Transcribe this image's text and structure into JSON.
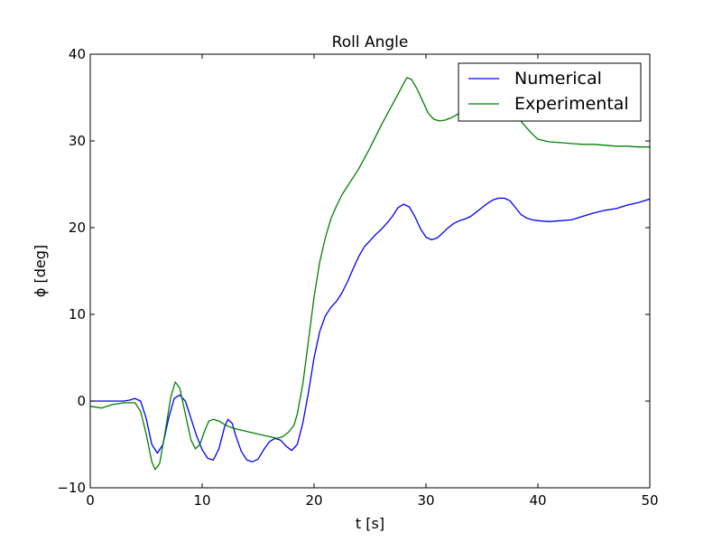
{
  "chart_data": {
    "type": "line",
    "title": "Roll Angle",
    "xlabel": "t [s]",
    "ylabel": "ϕ [deg]",
    "xlim": [
      0,
      50
    ],
    "ylim": [
      -10,
      40
    ],
    "xticks": [
      0,
      10,
      20,
      30,
      40,
      50
    ],
    "yticks": [
      -10,
      0,
      10,
      20,
      30,
      40
    ],
    "grid": false,
    "legend_position": "top-right",
    "series": [
      {
        "name": "Numerical",
        "color": "#0000ff",
        "points": [
          [
            0,
            0.0
          ],
          [
            1,
            0.0
          ],
          [
            2,
            0.0
          ],
          [
            3,
            0.0
          ],
          [
            3.5,
            0.1
          ],
          [
            4,
            0.3
          ],
          [
            4.5,
            0.0
          ],
          [
            5,
            -2.0
          ],
          [
            5.5,
            -5.0
          ],
          [
            6,
            -6.0
          ],
          [
            6.5,
            -5.0
          ],
          [
            7,
            -2.0
          ],
          [
            7.5,
            0.3
          ],
          [
            8,
            0.7
          ],
          [
            8.5,
            0.0
          ],
          [
            9,
            -2.0
          ],
          [
            9.5,
            -4.0
          ],
          [
            10,
            -5.6
          ],
          [
            10.5,
            -6.6
          ],
          [
            11,
            -6.8
          ],
          [
            11.5,
            -5.5
          ],
          [
            12,
            -3.0
          ],
          [
            12.3,
            -2.1
          ],
          [
            12.7,
            -2.6
          ],
          [
            13,
            -4.0
          ],
          [
            13.5,
            -5.8
          ],
          [
            14,
            -6.8
          ],
          [
            14.5,
            -7.0
          ],
          [
            15,
            -6.7
          ],
          [
            15.5,
            -5.6
          ],
          [
            16,
            -4.7
          ],
          [
            16.5,
            -4.3
          ],
          [
            17,
            -4.5
          ],
          [
            17.5,
            -5.2
          ],
          [
            18,
            -5.7
          ],
          [
            18.5,
            -5.0
          ],
          [
            19,
            -2.5
          ],
          [
            19.5,
            1.0
          ],
          [
            20,
            5.0
          ],
          [
            20.5,
            8.0
          ],
          [
            21,
            9.8
          ],
          [
            21.5,
            10.8
          ],
          [
            22,
            11.5
          ],
          [
            22.5,
            12.5
          ],
          [
            23,
            13.8
          ],
          [
            23.5,
            15.3
          ],
          [
            24,
            16.7
          ],
          [
            24.5,
            17.8
          ],
          [
            25,
            18.5
          ],
          [
            25.5,
            19.2
          ],
          [
            26,
            19.8
          ],
          [
            26.5,
            20.5
          ],
          [
            27,
            21.3
          ],
          [
            27.5,
            22.3
          ],
          [
            28,
            22.7
          ],
          [
            28.5,
            22.4
          ],
          [
            29,
            21.3
          ],
          [
            29.5,
            19.9
          ],
          [
            30,
            18.9
          ],
          [
            30.5,
            18.6
          ],
          [
            31,
            18.8
          ],
          [
            31.5,
            19.4
          ],
          [
            32,
            20.0
          ],
          [
            32.5,
            20.5
          ],
          [
            33,
            20.8
          ],
          [
            33.5,
            21.0
          ],
          [
            34,
            21.3
          ],
          [
            34.5,
            21.8
          ],
          [
            35,
            22.3
          ],
          [
            35.5,
            22.8
          ],
          [
            36,
            23.2
          ],
          [
            36.5,
            23.4
          ],
          [
            37,
            23.4
          ],
          [
            37.5,
            23.1
          ],
          [
            38,
            22.3
          ],
          [
            38.5,
            21.5
          ],
          [
            39,
            21.1
          ],
          [
            39.5,
            20.9
          ],
          [
            40,
            20.8
          ],
          [
            41,
            20.7
          ],
          [
            42,
            20.8
          ],
          [
            43,
            20.9
          ],
          [
            44,
            21.3
          ],
          [
            45,
            21.7
          ],
          [
            46,
            22.0
          ],
          [
            47,
            22.2
          ],
          [
            48,
            22.6
          ],
          [
            49,
            22.9
          ],
          [
            50,
            23.3
          ]
        ]
      },
      {
        "name": "Experimental",
        "color": "#008000",
        "points": [
          [
            0,
            -0.6
          ],
          [
            0.5,
            -0.7
          ],
          [
            1,
            -0.8
          ],
          [
            1.5,
            -0.6
          ],
          [
            2,
            -0.4
          ],
          [
            2.5,
            -0.3
          ],
          [
            3,
            -0.2
          ],
          [
            3.5,
            -0.2
          ],
          [
            4,
            -0.2
          ],
          [
            4.5,
            -1.2
          ],
          [
            5,
            -3.8
          ],
          [
            5.5,
            -7.0
          ],
          [
            5.8,
            -7.9
          ],
          [
            6.2,
            -7.2
          ],
          [
            6.7,
            -3.5
          ],
          [
            7.2,
            0.5
          ],
          [
            7.6,
            2.2
          ],
          [
            8,
            1.5
          ],
          [
            8.5,
            -1.5
          ],
          [
            9,
            -4.5
          ],
          [
            9.4,
            -5.5
          ],
          [
            9.8,
            -5.0
          ],
          [
            10.2,
            -3.5
          ],
          [
            10.6,
            -2.3
          ],
          [
            11,
            -2.1
          ],
          [
            11.5,
            -2.3
          ],
          [
            12,
            -2.7
          ],
          [
            12.5,
            -3.0
          ],
          [
            13,
            -3.2
          ],
          [
            14,
            -3.5
          ],
          [
            15,
            -3.8
          ],
          [
            16,
            -4.1
          ],
          [
            16.7,
            -4.3
          ],
          [
            17.2,
            -4.1
          ],
          [
            17.7,
            -3.6
          ],
          [
            18.2,
            -2.8
          ],
          [
            18.5,
            -1.5
          ],
          [
            19,
            2.0
          ],
          [
            19.5,
            7.0
          ],
          [
            20,
            12.0
          ],
          [
            20.5,
            16.0
          ],
          [
            21,
            18.8
          ],
          [
            21.5,
            21.0
          ],
          [
            22,
            22.5
          ],
          [
            22.5,
            23.8
          ],
          [
            23,
            24.8
          ],
          [
            23.5,
            25.8
          ],
          [
            24,
            26.8
          ],
          [
            24.5,
            28.0
          ],
          [
            25,
            29.2
          ],
          [
            25.5,
            30.5
          ],
          [
            26,
            31.8
          ],
          [
            26.5,
            33.0
          ],
          [
            27,
            34.2
          ],
          [
            27.5,
            35.4
          ],
          [
            28,
            36.6
          ],
          [
            28.3,
            37.3
          ],
          [
            28.7,
            37.1
          ],
          [
            29.2,
            36.0
          ],
          [
            29.7,
            34.6
          ],
          [
            30.2,
            33.2
          ],
          [
            30.7,
            32.5
          ],
          [
            31.2,
            32.3
          ],
          [
            31.7,
            32.4
          ],
          [
            32.3,
            32.7
          ],
          [
            33,
            33.2
          ],
          [
            34,
            34.0
          ],
          [
            35,
            34.5
          ],
          [
            36,
            34.3
          ],
          [
            37,
            33.8
          ],
          [
            38,
            33.0
          ],
          [
            39,
            31.5
          ],
          [
            39.5,
            30.8
          ],
          [
            40,
            30.2
          ],
          [
            41,
            29.9
          ],
          [
            42,
            29.8
          ],
          [
            43,
            29.7
          ],
          [
            44,
            29.6
          ],
          [
            45,
            29.6
          ],
          [
            46,
            29.5
          ],
          [
            47,
            29.4
          ],
          [
            48,
            29.4
          ],
          [
            49,
            29.3
          ],
          [
            50,
            29.3
          ]
        ]
      }
    ]
  }
}
